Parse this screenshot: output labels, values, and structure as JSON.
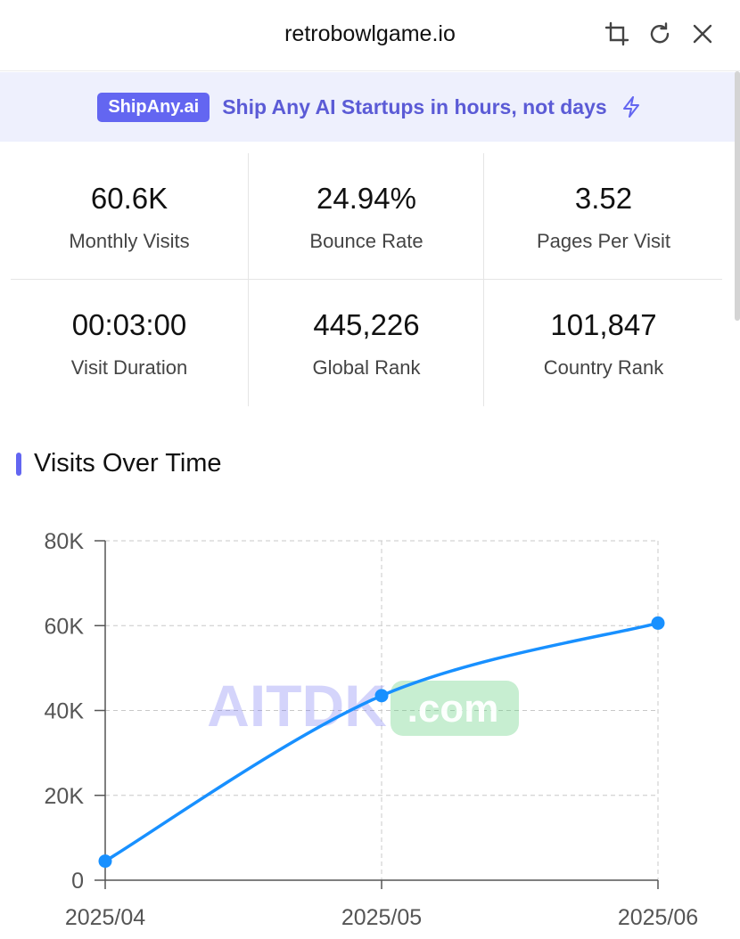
{
  "header": {
    "title": "retrobowlgame.io",
    "icons": [
      "crop-icon",
      "refresh-icon",
      "close-icon"
    ]
  },
  "banner": {
    "badge": "ShipAny.ai",
    "text": "Ship Any AI Startups in hours, not days",
    "icon": "lightning-icon",
    "accent": "#6366f1"
  },
  "stats": [
    {
      "value": "60.6K",
      "label": "Monthly Visits"
    },
    {
      "value": "24.94%",
      "label": "Bounce Rate"
    },
    {
      "value": "3.52",
      "label": "Pages Per Visit"
    },
    {
      "value": "00:03:00",
      "label": "Visit Duration"
    },
    {
      "value": "445,226",
      "label": "Global Rank"
    },
    {
      "value": "101,847",
      "label": "Country Rank"
    }
  ],
  "section": {
    "title": "Visits Over Time"
  },
  "watermark": {
    "left": "AITDK",
    "right": ".com"
  },
  "chart_data": {
    "type": "line",
    "title": "",
    "xlabel": "",
    "ylabel": "",
    "categories": [
      "2025/04",
      "2025/05",
      "2025/06"
    ],
    "series": [
      {
        "values": [
          4500,
          43500,
          60600
        ],
        "color": "#1890ff"
      }
    ],
    "ylim": [
      0,
      80000
    ],
    "yticks": [
      "0",
      "20K",
      "40K",
      "60K",
      "80K"
    ],
    "ytick_values": [
      0,
      20000,
      40000,
      60000,
      80000
    ],
    "grid": true
  }
}
